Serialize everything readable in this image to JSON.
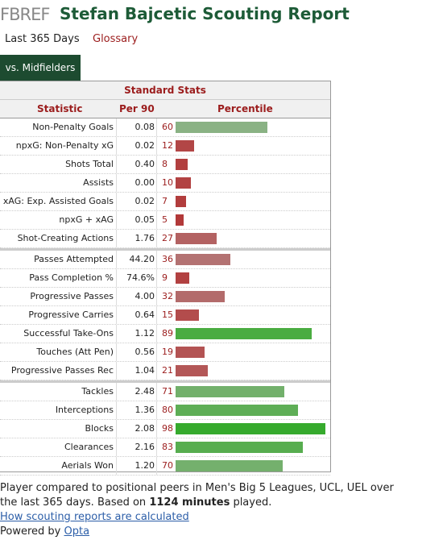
{
  "header": {
    "logo": "FBREF",
    "title": "Stefan Bajcetic Scouting Report"
  },
  "tabs": [
    "Last 365 Days",
    "Glossary"
  ],
  "filter": "vs. Midfielders",
  "table": {
    "caption": "Standard Stats",
    "columns": [
      "Statistic",
      "Per 90",
      "Percentile"
    ],
    "groups": [
      [
        {
          "stat": "Non-Penalty Goals",
          "per90": "0.08",
          "percentile": 60
        },
        {
          "stat": "npxG: Non-Penalty xG",
          "per90": "0.02",
          "percentile": 12
        },
        {
          "stat": "Shots Total",
          "per90": "0.40",
          "percentile": 8
        },
        {
          "stat": "Assists",
          "per90": "0.00",
          "percentile": 10
        },
        {
          "stat": "xAG: Exp. Assisted Goals",
          "per90": "0.02",
          "percentile": 7
        },
        {
          "stat": "npxG + xAG",
          "per90": "0.05",
          "percentile": 5
        },
        {
          "stat": "Shot-Creating Actions",
          "per90": "1.76",
          "percentile": 27
        }
      ],
      [
        {
          "stat": "Passes Attempted",
          "per90": "44.20",
          "percentile": 36
        },
        {
          "stat": "Pass Completion %",
          "per90": "74.6%",
          "percentile": 9
        },
        {
          "stat": "Progressive Passes",
          "per90": "4.00",
          "percentile": 32
        },
        {
          "stat": "Progressive Carries",
          "per90": "0.64",
          "percentile": 15
        },
        {
          "stat": "Successful Take-Ons",
          "per90": "1.12",
          "percentile": 89
        },
        {
          "stat": "Touches (Att Pen)",
          "per90": "0.56",
          "percentile": 19
        },
        {
          "stat": "Progressive Passes Rec",
          "per90": "1.04",
          "percentile": 21
        }
      ],
      [
        {
          "stat": "Tackles",
          "per90": "2.48",
          "percentile": 71
        },
        {
          "stat": "Interceptions",
          "per90": "1.36",
          "percentile": 80
        },
        {
          "stat": "Blocks",
          "per90": "2.08",
          "percentile": 98
        },
        {
          "stat": "Clearances",
          "per90": "2.16",
          "percentile": 83
        },
        {
          "stat": "Aerials Won",
          "per90": "1.20",
          "percentile": 70
        }
      ]
    ]
  },
  "footer": {
    "note_before": "Player compared to positional peers in Men's Big 5 Leagues, UCL, UEL over the last 365 days. Based on ",
    "note_bold": "1124 minutes",
    "note_after": " played.",
    "link": "How scouting reports are calculated",
    "powered": "Powered by ",
    "powered_link": "Opta"
  }
}
